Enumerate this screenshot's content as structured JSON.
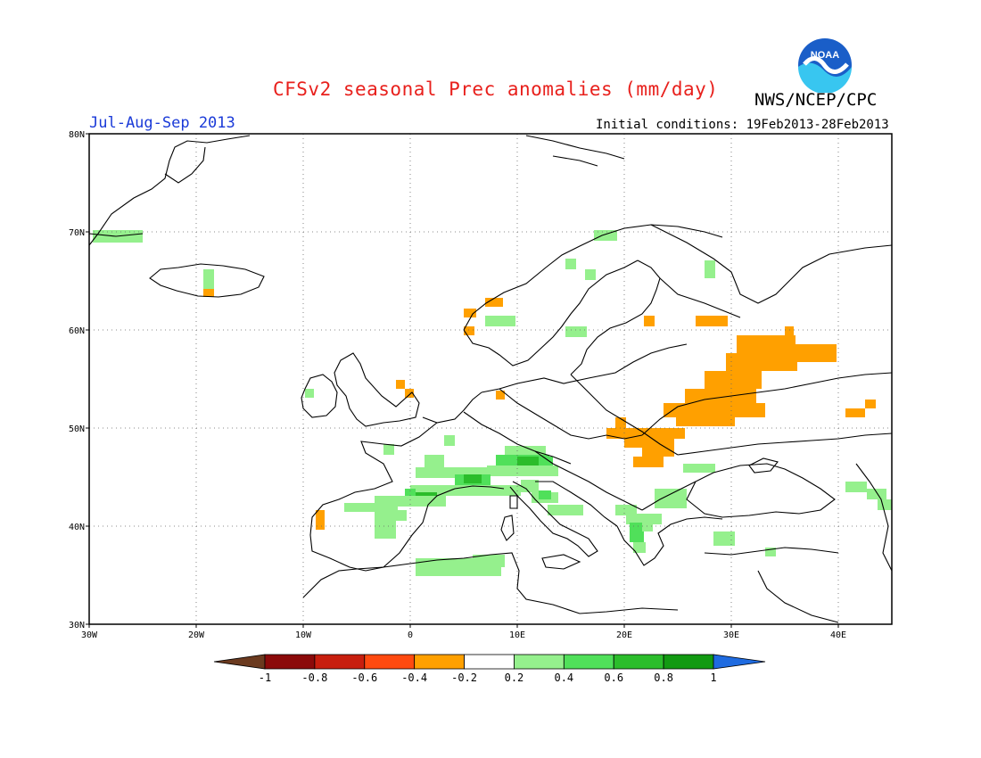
{
  "header": {
    "title": "CFSv2 seasonal Prec anomalies (mm/day)",
    "agency": "NWS/NCEP/CPC",
    "season": "Jul-Aug-Sep 2013",
    "initial_conditions": "Initial conditions: 19Feb2013-28Feb2013",
    "logo_text": "NOAA"
  },
  "map": {
    "lat_labels": [
      "80N",
      "70N",
      "60N",
      "50N",
      "40N",
      "30N"
    ],
    "lon_labels": [
      "30W",
      "20W",
      "10W",
      "0",
      "10E",
      "20E",
      "30E",
      "40E"
    ],
    "region": "Europe",
    "grid_style": "dotted"
  },
  "colorbar": {
    "labels": [
      "-1",
      "-0.8",
      "-0.6",
      "-0.4",
      "-0.2",
      "0.2",
      "0.4",
      "0.6",
      "0.8",
      "1"
    ],
    "colors": [
      "#8b0a0a",
      "#c81e0e",
      "#ff4a10",
      "#ffa000",
      "#ffffff",
      "#95f08d",
      "#50e05a",
      "#2bbd2b",
      "#129a12"
    ],
    "low_end_color": "#6b3a1f",
    "high_end_color": "#1f6be0"
  },
  "anomalies": {
    "legend_key_colors": {
      "pos_light": "#95f08d",
      "pos_mid": "#50e05a",
      "pos_dark": "#2bbd2b",
      "neg": "#ffa000"
    }
  }
}
